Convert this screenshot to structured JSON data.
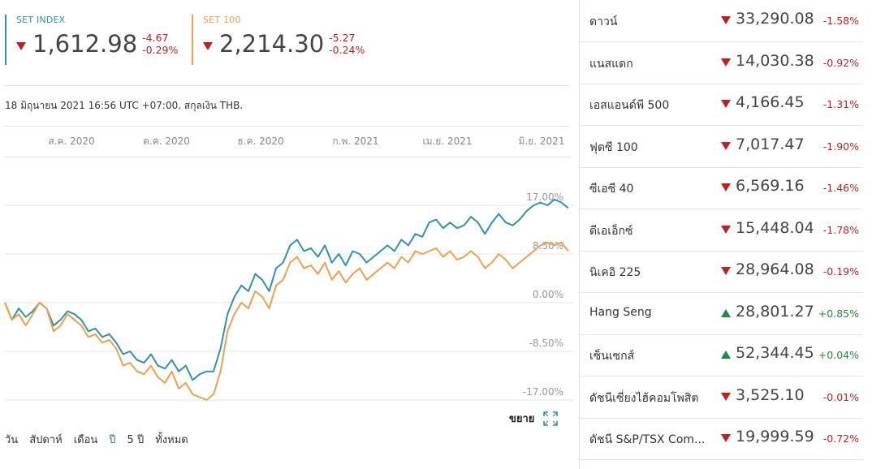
{
  "indices": [
    {
      "name": "SET INDEX",
      "value": "1,612.98",
      "change": "-4.67",
      "change_pct": "-0.29%",
      "direction": "down",
      "color": "#2e94a8"
    },
    {
      "name": "SET 100",
      "value": "2,214.30",
      "change": "-5.27",
      "change_pct": "-0.24%",
      "direction": "down",
      "color": "#f0a04b"
    }
  ],
  "meta_text": "18 มิถุนายน 2021 16:56 UTC +07:00. สกุลเงิน THB.",
  "chart_data": {
    "type": "line",
    "x_tick_labels": [
      "ส.ค. 2020",
      "ต.ค. 2020",
      "ธ.ค. 2020",
      "ก.พ. 2021",
      "เม.ย. 2021",
      "มิ.ย. 2021"
    ],
    "y_tick_labels": [
      "17.00%",
      "8.50%",
      "0.00%",
      "-8.50%",
      "-17.00%"
    ],
    "ylim": [
      -17,
      17
    ],
    "grid": true,
    "series": [
      {
        "name": "SET INDEX",
        "color": "#2e94a8",
        "values": [
          0,
          -3,
          -1,
          -2.5,
          -1.5,
          0,
          -1,
          -4,
          -3,
          -1.5,
          -2,
          -3,
          -5,
          -4.5,
          -6,
          -5.5,
          -7,
          -9,
          -8.5,
          -10,
          -10.5,
          -9,
          -11,
          -11.5,
          -10,
          -12,
          -11,
          -13.5,
          -12.5,
          -12,
          -12,
          -8,
          -2,
          1,
          3,
          2,
          5,
          4,
          2,
          6,
          7,
          10,
          11,
          9,
          9.5,
          8,
          10,
          7,
          8.5,
          6.5,
          9,
          8.5,
          7,
          8,
          9,
          10,
          9,
          11,
          10,
          12,
          11.5,
          14,
          14.5,
          13,
          14,
          13,
          13.5,
          15,
          14,
          12,
          14,
          15.5,
          14,
          13.5,
          14.5,
          16,
          17,
          17.5,
          17,
          18,
          17.5,
          16.5
        ]
      },
      {
        "name": "SET 100",
        "color": "#f0a04b",
        "values": [
          0,
          -3,
          -2,
          -4,
          -2,
          0,
          -1,
          -5,
          -4,
          -2,
          -3,
          -4,
          -6,
          -5.5,
          -7,
          -6.5,
          -8,
          -11,
          -10.5,
          -12,
          -12.5,
          -11,
          -13,
          -14,
          -12,
          -15,
          -14,
          -16,
          -16.5,
          -17,
          -16,
          -12,
          -5,
          -2,
          0,
          -1,
          2,
          1,
          -1,
          3,
          4,
          7,
          8,
          6,
          6.5,
          5,
          7,
          4,
          5.5,
          3.5,
          5,
          6,
          4,
          5,
          6,
          7,
          6,
          8,
          7,
          9,
          8.5,
          9,
          9.5,
          8,
          9,
          7.5,
          8,
          9,
          8,
          6,
          7,
          8.5,
          7.5,
          6,
          7,
          8,
          9,
          10,
          10.5,
          10,
          10.5,
          9
        ]
      }
    ]
  },
  "expand_label": "ขยาย",
  "ranges": [
    "วัน",
    "สัปดาห์",
    "เดือน",
    "ปี",
    "5 ปี",
    "ทั้งหมด"
  ],
  "active_range": "ปี",
  "markets": [
    {
      "name": "ดาวน์",
      "value": "33,290.08",
      "change": "-1.58%",
      "direction": "down"
    },
    {
      "name": "แนสแดก",
      "value": "14,030.38",
      "change": "-0.92%",
      "direction": "down"
    },
    {
      "name": "เอสแอนด์พี 500",
      "value": "4,166.45",
      "change": "-1.31%",
      "direction": "down"
    },
    {
      "name": "ฟุตซี 100",
      "value": "7,017.47",
      "change": "-1.90%",
      "direction": "down"
    },
    {
      "name": "ซีเอซี 40",
      "value": "6,569.16",
      "change": "-1.46%",
      "direction": "down"
    },
    {
      "name": "ดีเอเอ็กซ์",
      "value": "15,448.04",
      "change": "-1.78%",
      "direction": "down"
    },
    {
      "name": "นิเคอิ 225",
      "value": "28,964.08",
      "change": "-0.19%",
      "direction": "down"
    },
    {
      "name": "Hang Seng",
      "value": "28,801.27",
      "change": "+0.85%",
      "direction": "up"
    },
    {
      "name": "เซ็นเซกส์",
      "value": "52,344.45",
      "change": "+0.04%",
      "direction": "up"
    },
    {
      "name": "ดัชนีเซี่ยงไฮ้คอมโพสิต",
      "value": "3,525.10",
      "change": "-0.01%",
      "direction": "down"
    },
    {
      "name": "ดัชนี S&P/TSX Com...",
      "value": "19,999.59",
      "change": "-0.72%",
      "direction": "down"
    }
  ]
}
